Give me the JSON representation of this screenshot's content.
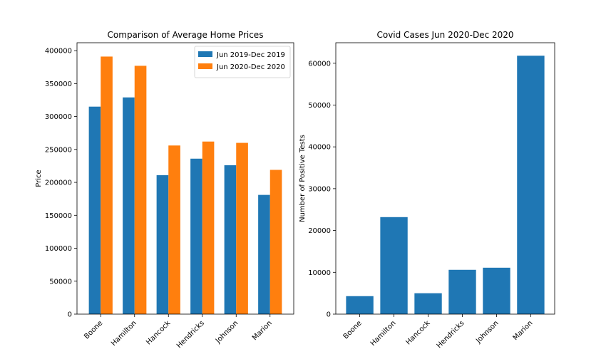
{
  "chart_data": [
    {
      "type": "bar",
      "title": "Comparison of Average Home Prices",
      "xlabel": "",
      "ylabel": "Price",
      "categories": [
        "Boone",
        "Hamilton",
        "Hancock",
        "Hendricks",
        "Johnson",
        "Marion"
      ],
      "series": [
        {
          "name": "Jun 2019-Dec 2019",
          "color": "#1f77b4",
          "values": [
            315000,
            329000,
            211000,
            236000,
            226000,
            181000
          ]
        },
        {
          "name": "Jun 2020-Dec 2020",
          "color": "#ff7f0e",
          "values": [
            391000,
            377000,
            256000,
            262000,
            260000,
            219000
          ]
        }
      ],
      "ylim": [
        0,
        412000
      ],
      "yticks": [
        0,
        50000,
        100000,
        150000,
        200000,
        250000,
        300000,
        350000,
        400000
      ],
      "legend": "top-right",
      "grid": false
    },
    {
      "type": "bar",
      "title": "Covid Cases Jun 2020-Dec 2020",
      "xlabel": "",
      "ylabel": "Number of Positive Tests",
      "categories": [
        "Boone",
        "Hamilton",
        "Hancock",
        "Hendricks",
        "Johnson",
        "Marion"
      ],
      "series": [
        {
          "color": "#1f77b4",
          "values": [
            4300,
            23200,
            5000,
            10600,
            11100,
            61800
          ]
        }
      ],
      "ylim": [
        0,
        64900
      ],
      "yticks": [
        0,
        10000,
        20000,
        30000,
        40000,
        50000,
        60000
      ],
      "grid": false
    }
  ]
}
